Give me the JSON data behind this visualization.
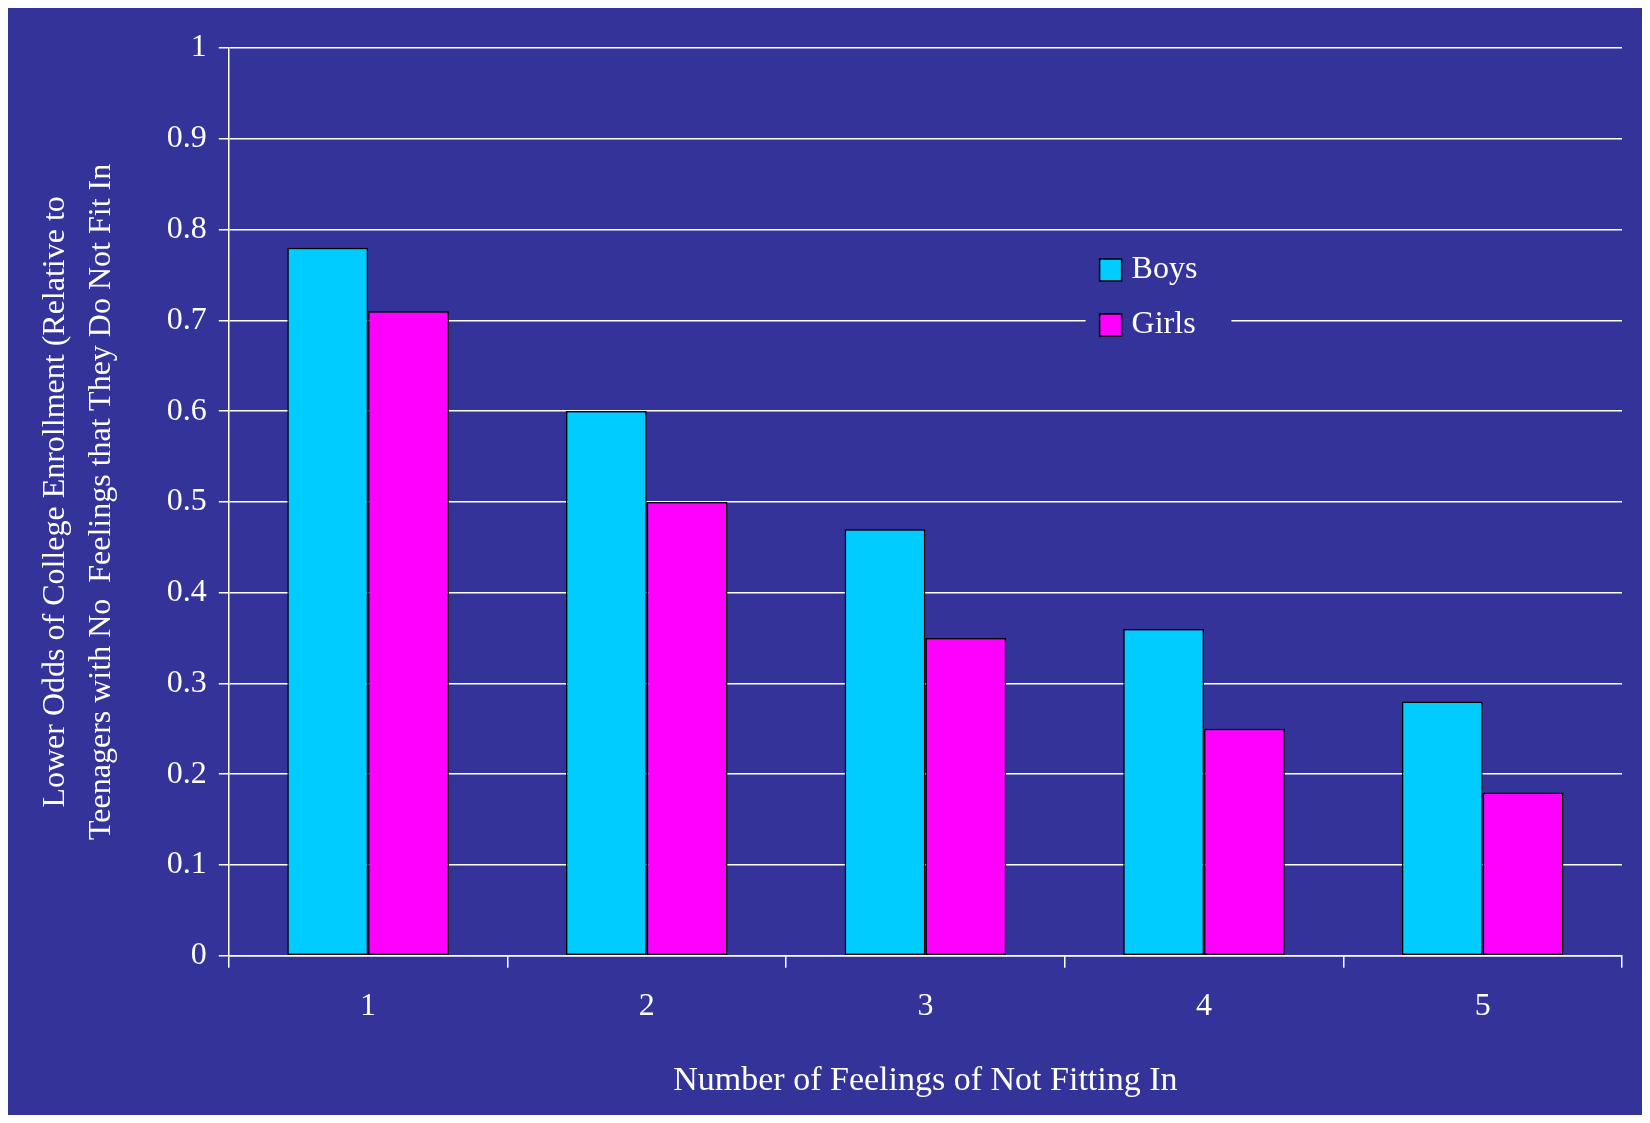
{
  "chart_data": {
    "type": "bar",
    "xlabel": "Number of Feelings of Not Fitting In",
    "ylabel": "Lower Odds of College Enrollment (Relative to\nTeenagers with No  Feelings that They Do Not Fit In",
    "categories": [
      "1",
      "2",
      "3",
      "4",
      "5"
    ],
    "series": [
      {
        "name": "Boys",
        "color": "#00ccff",
        "values": [
          0.78,
          0.6,
          0.47,
          0.36,
          0.28
        ]
      },
      {
        "name": "Girls",
        "color": "#ff00ff",
        "values": [
          0.71,
          0.5,
          0.35,
          0.25,
          0.18
        ]
      }
    ],
    "ylim": [
      0,
      1
    ],
    "yticks": [
      0,
      0.1,
      0.2,
      0.3,
      0.4,
      0.5,
      0.6,
      0.7,
      0.8,
      0.9,
      1
    ],
    "grid": "y",
    "legend": "top right"
  }
}
